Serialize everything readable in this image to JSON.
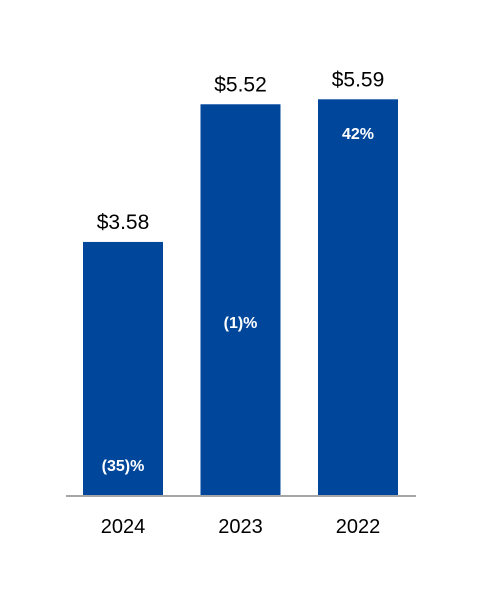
{
  "chart_data": {
    "type": "bar",
    "categories": [
      "2024",
      "2023",
      "2022"
    ],
    "values": [
      3.58,
      5.52,
      5.59
    ],
    "value_labels": [
      "$3.58",
      "$5.52",
      "$5.59"
    ],
    "change_labels": [
      "(35)%",
      "(1)%",
      "42%"
    ],
    "title": "",
    "xlabel": "",
    "ylabel": "",
    "ylim": [
      0,
      5.7
    ],
    "grid": false,
    "legend": "none",
    "colors": {
      "bar": "#00479b",
      "axis": "#a6a6a6",
      "value_text": "#000000",
      "change_text": "#ffffff"
    }
  }
}
